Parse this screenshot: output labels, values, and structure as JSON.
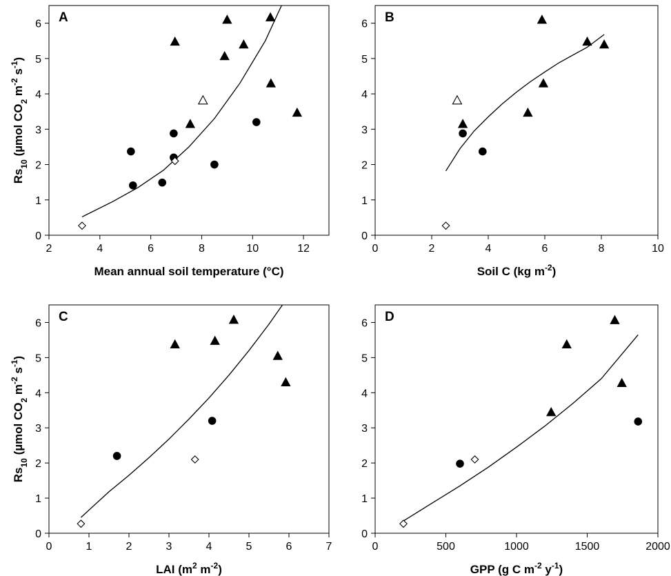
{
  "chart_data": [
    {
      "type": "scatter",
      "panel_label": "A",
      "xlabel": "Mean annual soil temperature (°C)",
      "ylabel": {
        "main": "Rs",
        "sub": "10",
        "rest1": " (µmol CO",
        "sub2": "2",
        "rest2": " m",
        "sup1": "-2",
        "rest3": " s",
        "sup2": "-1",
        "rest4": ")"
      },
      "xlim": [
        2,
        13
      ],
      "ylim": [
        0,
        6.5
      ],
      "xticks": [
        "2",
        "4",
        "6",
        "8",
        "10",
        "12"
      ],
      "yticks": [
        "0",
        "1",
        "2",
        "3",
        "4",
        "5",
        "6"
      ],
      "series": [
        {
          "marker": "triangle-filled",
          "points": [
            [
              6.95,
              5.48
            ],
            [
              7.55,
              3.15
            ],
            [
              8.9,
              5.07
            ],
            [
              9.0,
              6.1
            ],
            [
              9.65,
              5.4
            ],
            [
              10.7,
              6.17
            ],
            [
              10.72,
              4.3
            ],
            [
              11.75,
              3.47
            ]
          ]
        },
        {
          "marker": "triangle-open",
          "points": [
            [
              8.05,
              3.82
            ]
          ]
        },
        {
          "marker": "circle-filled",
          "points": [
            [
              5.22,
              2.37
            ],
            [
              5.3,
              1.41
            ],
            [
              6.45,
              1.49
            ],
            [
              6.9,
              2.88
            ],
            [
              6.9,
              2.2
            ],
            [
              8.5,
              2.0
            ],
            [
              10.15,
              3.2
            ]
          ]
        },
        {
          "marker": "diamond-open",
          "points": [
            [
              3.3,
              0.27
            ],
            [
              6.95,
              2.1
            ]
          ]
        }
      ],
      "curve": {
        "points": [
          [
            3.3,
            0.52
          ],
          [
            4.5,
            0.95
          ],
          [
            5.5,
            1.35
          ],
          [
            6.5,
            1.84
          ],
          [
            7.5,
            2.5
          ],
          [
            8.5,
            3.3
          ],
          [
            9.5,
            4.3
          ],
          [
            10.5,
            5.5
          ],
          [
            11.15,
            6.52
          ]
        ]
      }
    },
    {
      "type": "scatter",
      "panel_label": "B",
      "xlabel": {
        "main": "Soil C (kg m",
        "sup": "-2",
        "rest": ")"
      },
      "ylabel": null,
      "xlim": [
        0,
        10
      ],
      "ylim": [
        0,
        6.5
      ],
      "xticks": [
        "0",
        "2",
        "4",
        "6",
        "8",
        "10"
      ],
      "yticks": [
        "0",
        "1",
        "2",
        "3",
        "4",
        "5",
        "6"
      ],
      "series": [
        {
          "marker": "triangle-filled",
          "points": [
            [
              3.1,
              3.15
            ],
            [
              5.4,
              3.47
            ],
            [
              5.9,
              6.1
            ],
            [
              5.95,
              4.3
            ],
            [
              7.5,
              5.48
            ],
            [
              8.1,
              5.4
            ]
          ]
        },
        {
          "marker": "triangle-open",
          "points": [
            [
              2.9,
              3.82
            ]
          ]
        },
        {
          "marker": "circle-filled",
          "points": [
            [
              3.1,
              2.88
            ],
            [
              3.8,
              2.37
            ]
          ]
        },
        {
          "marker": "diamond-open",
          "points": [
            [
              2.5,
              0.27
            ]
          ]
        }
      ],
      "curve": {
        "points": [
          [
            2.5,
            1.82
          ],
          [
            3.0,
            2.45
          ],
          [
            3.5,
            2.95
          ],
          [
            4.0,
            3.35
          ],
          [
            4.5,
            3.72
          ],
          [
            5.0,
            4.05
          ],
          [
            5.5,
            4.35
          ],
          [
            6.0,
            4.62
          ],
          [
            6.5,
            4.88
          ],
          [
            7.0,
            5.1
          ],
          [
            7.5,
            5.32
          ],
          [
            8.1,
            5.68
          ]
        ]
      }
    },
    {
      "type": "scatter",
      "panel_label": "C",
      "xlabel": {
        "main": "LAI (m",
        "sup1": "2",
        "mid": " m",
        "sup2": "-2",
        "rest": ")"
      },
      "ylabel": {
        "main": "Rs",
        "sub": "10",
        "rest1": " (µmol CO",
        "sub2": "2",
        "rest2": " m",
        "sup1": "-2",
        "rest3": " s",
        "sup2": "-1",
        "rest4": ")"
      },
      "xlim": [
        0,
        7
      ],
      "ylim": [
        0,
        6.5
      ],
      "xticks": [
        "0",
        "1",
        "2",
        "3",
        "4",
        "5",
        "6",
        "7"
      ],
      "yticks": [
        "0",
        "1",
        "2",
        "3",
        "4",
        "5",
        "6"
      ],
      "series": [
        {
          "marker": "triangle-filled",
          "points": [
            [
              3.15,
              5.38
            ],
            [
              4.15,
              5.48
            ],
            [
              4.62,
              6.08
            ],
            [
              5.72,
              5.05
            ],
            [
              5.92,
              4.3
            ]
          ]
        },
        {
          "marker": "circle-filled",
          "points": [
            [
              1.7,
              2.2
            ],
            [
              4.08,
              3.2
            ]
          ]
        },
        {
          "marker": "diamond-open",
          "points": [
            [
              0.8,
              0.27
            ],
            [
              3.65,
              2.1
            ]
          ]
        }
      ],
      "curve": {
        "points": [
          [
            0.8,
            0.45
          ],
          [
            1.5,
            1.18
          ],
          [
            2.0,
            1.65
          ],
          [
            2.5,
            2.15
          ],
          [
            3.0,
            2.68
          ],
          [
            3.5,
            3.25
          ],
          [
            4.0,
            3.85
          ],
          [
            4.5,
            4.5
          ],
          [
            5.0,
            5.2
          ],
          [
            5.5,
            5.95
          ],
          [
            5.85,
            6.52
          ]
        ]
      }
    },
    {
      "type": "scatter",
      "panel_label": "D",
      "xlabel": {
        "main": "GPP (g C m",
        "sup1": "-2",
        "mid": " y",
        "sup2": "-1",
        "rest": ")"
      },
      "ylabel": null,
      "xlim": [
        0,
        2000
      ],
      "ylim": [
        0,
        6.5
      ],
      "xticks": [
        "0",
        "500",
        "1000",
        "1500",
        "2000"
      ],
      "yticks": [
        "0",
        "1",
        "2",
        "3",
        "4",
        "5",
        "6"
      ],
      "series": [
        {
          "marker": "triangle-filled",
          "points": [
            [
              1245,
              3.45
            ],
            [
              1355,
              5.38
            ],
            [
              1695,
              6.07
            ],
            [
              1745,
              4.28
            ]
          ]
        },
        {
          "marker": "circle-filled",
          "points": [
            [
              600,
              1.98
            ],
            [
              1860,
              3.18
            ]
          ]
        },
        {
          "marker": "diamond-open",
          "points": [
            [
              200,
              0.27
            ],
            [
              705,
              2.1
            ]
          ]
        }
      ],
      "curve": {
        "points": [
          [
            200,
            0.35
          ],
          [
            400,
            0.85
          ],
          [
            600,
            1.35
          ],
          [
            800,
            1.88
          ],
          [
            1000,
            2.45
          ],
          [
            1200,
            3.05
          ],
          [
            1400,
            3.7
          ],
          [
            1600,
            4.4
          ],
          [
            1860,
            5.65
          ]
        ]
      }
    }
  ]
}
